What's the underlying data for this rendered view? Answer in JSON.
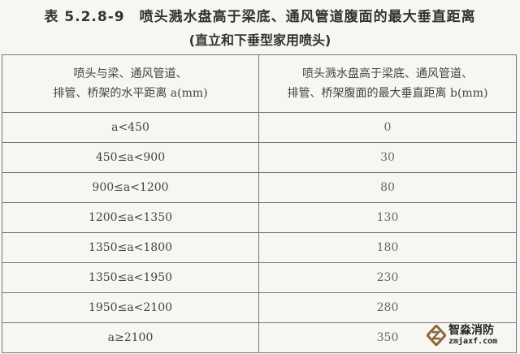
{
  "title": "表 5.2.8-9　喷头溅水盘高于梁底、通风管道腹面的最大垂直距离",
  "subtitle": "(直立和下垂型家用喷头)",
  "headers": [
    {
      "line1": "喷头与梁、通风管道、",
      "line2": "排管、桥架的水平距离 a(mm)"
    },
    {
      "line1": "喷头溅水盘高于梁底、通风管道、",
      "line2": "排管、桥架腹面的最大垂直距离 b(mm)"
    }
  ],
  "rows": [
    {
      "a": "a<450",
      "b": "0"
    },
    {
      "a": "450≤a<900",
      "b": "30"
    },
    {
      "a": "900≤a<1200",
      "b": "80"
    },
    {
      "a": "1200≤a<1350",
      "b": "130"
    },
    {
      "a": "1350≤a<1800",
      "b": "180"
    },
    {
      "a": "1350≤a<1950",
      "b": "230"
    },
    {
      "a": "1950≤a<2100",
      "b": "280"
    },
    {
      "a": "a≥2100",
      "b": "350"
    }
  ],
  "watermark": {
    "name": "智淼消防",
    "url": "zmjaxf.com",
    "logo_color": "#8a6a3a"
  }
}
